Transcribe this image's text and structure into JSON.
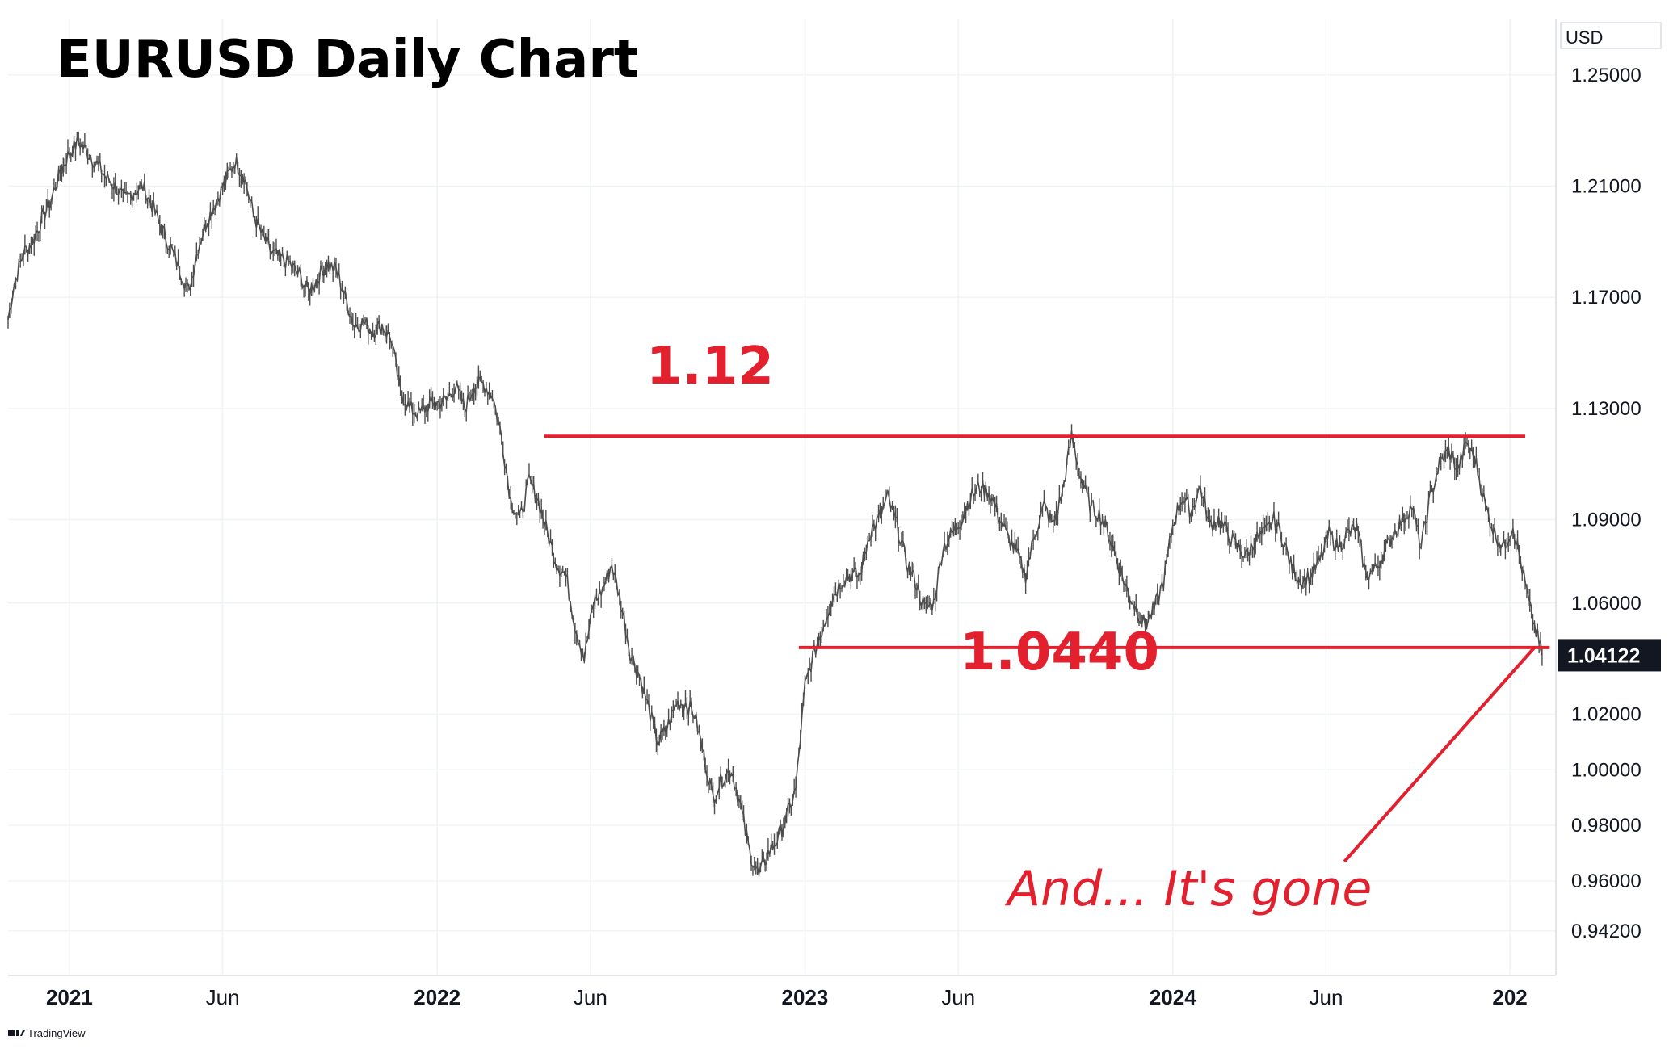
{
  "chart_data": {
    "type": "line",
    "title": "EURUSD Daily Chart",
    "xlabel": "",
    "ylabel": "",
    "currency_label": "USD",
    "x_ticks": [
      "2021",
      "Jun",
      "2022",
      "Jun",
      "2023",
      "Jun",
      "2024",
      "Jun",
      "202"
    ],
    "x_ticks_bold": [
      true,
      false,
      true,
      false,
      true,
      false,
      true,
      false,
      true
    ],
    "x_tick_times": [
      0,
      5,
      12,
      17,
      24,
      29,
      36,
      41,
      47
    ],
    "y_ticks": [
      "1.25000",
      "1.21000",
      "1.17000",
      "1.13000",
      "1.09000",
      "1.06000",
      "1.02000",
      "1.00000",
      "0.98000",
      "0.96000",
      "0.94200"
    ],
    "y_tick_values": [
      1.25,
      1.21,
      1.17,
      1.13,
      1.09,
      1.06,
      1.02,
      1.0,
      0.98,
      0.96,
      0.942
    ],
    "ylim": [
      0.926,
      1.27
    ],
    "xlim": [
      -2.0,
      48.5
    ],
    "grid": true,
    "last_price": 1.04122,
    "last_price_label": "1.04122",
    "series": [
      {
        "points": [
          [
            -2.0,
            1.162
          ],
          [
            -1.8,
            1.175
          ],
          [
            -1.5,
            1.186
          ],
          [
            -1.2,
            1.19
          ],
          [
            -0.9,
            1.198
          ],
          [
            -0.6,
            1.205
          ],
          [
            -0.3,
            1.215
          ],
          [
            0.0,
            1.222
          ],
          [
            0.3,
            1.226
          ],
          [
            0.6,
            1.222
          ],
          [
            0.9,
            1.218
          ],
          [
            1.2,
            1.213
          ],
          [
            1.5,
            1.21
          ],
          [
            1.8,
            1.205
          ],
          [
            2.1,
            1.208
          ],
          [
            2.4,
            1.21
          ],
          [
            2.7,
            1.203
          ],
          [
            3.0,
            1.195
          ],
          [
            3.3,
            1.188
          ],
          [
            3.6,
            1.18
          ],
          [
            3.9,
            1.172
          ],
          [
            4.2,
            1.188
          ],
          [
            4.5,
            1.198
          ],
          [
            4.8,
            1.205
          ],
          [
            5.1,
            1.212
          ],
          [
            5.4,
            1.219
          ],
          [
            5.7,
            1.214
          ],
          [
            6.0,
            1.2
          ],
          [
            6.3,
            1.192
          ],
          [
            6.6,
            1.186
          ],
          [
            6.9,
            1.184
          ],
          [
            7.2,
            1.182
          ],
          [
            7.5,
            1.178
          ],
          [
            7.8,
            1.172
          ],
          [
            8.1,
            1.177
          ],
          [
            8.4,
            1.182
          ],
          [
            8.7,
            1.18
          ],
          [
            9.0,
            1.17
          ],
          [
            9.3,
            1.16
          ],
          [
            9.6,
            1.161
          ],
          [
            9.9,
            1.158
          ],
          [
            10.2,
            1.16
          ],
          [
            10.5,
            1.155
          ],
          [
            10.8,
            1.136
          ],
          [
            11.1,
            1.13
          ],
          [
            11.4,
            1.128
          ],
          [
            11.7,
            1.131
          ],
          [
            12.0,
            1.132
          ],
          [
            12.3,
            1.133
          ],
          [
            12.6,
            1.138
          ],
          [
            12.9,
            1.13
          ],
          [
            13.2,
            1.138
          ],
          [
            13.5,
            1.139
          ],
          [
            13.8,
            1.135
          ],
          [
            14.1,
            1.12
          ],
          [
            14.4,
            1.097
          ],
          [
            14.7,
            1.09
          ],
          [
            15.0,
            1.104
          ],
          [
            15.3,
            1.097
          ],
          [
            15.6,
            1.085
          ],
          [
            15.9,
            1.074
          ],
          [
            16.2,
            1.07
          ],
          [
            16.5,
            1.052
          ],
          [
            16.8,
            1.04
          ],
          [
            17.1,
            1.06
          ],
          [
            17.4,
            1.065
          ],
          [
            17.7,
            1.074
          ],
          [
            18.0,
            1.06
          ],
          [
            18.3,
            1.042
          ],
          [
            18.6,
            1.034
          ],
          [
            18.9,
            1.022
          ],
          [
            19.2,
            1.01
          ],
          [
            19.5,
            1.015
          ],
          [
            19.8,
            1.024
          ],
          [
            20.1,
            1.024
          ],
          [
            20.4,
            1.02
          ],
          [
            20.7,
            1.005
          ],
          [
            21.0,
            0.99
          ],
          [
            21.3,
            0.997
          ],
          [
            21.6,
            1.0
          ],
          [
            21.9,
            0.987
          ],
          [
            22.2,
            0.97
          ],
          [
            22.5,
            0.962
          ],
          [
            22.8,
            0.97
          ],
          [
            23.1,
            0.975
          ],
          [
            23.4,
            0.983
          ],
          [
            23.7,
            0.993
          ],
          [
            24.0,
            1.03
          ],
          [
            24.3,
            1.042
          ],
          [
            24.6,
            1.052
          ],
          [
            24.9,
            1.062
          ],
          [
            25.2,
            1.068
          ],
          [
            25.5,
            1.07
          ],
          [
            25.8,
            1.07
          ],
          [
            26.1,
            1.085
          ],
          [
            26.4,
            1.09
          ],
          [
            26.7,
            1.098
          ],
          [
            27.0,
            1.088
          ],
          [
            27.3,
            1.075
          ],
          [
            27.6,
            1.068
          ],
          [
            27.9,
            1.058
          ],
          [
            28.2,
            1.06
          ],
          [
            28.5,
            1.08
          ],
          [
            28.8,
            1.085
          ],
          [
            29.1,
            1.09
          ],
          [
            29.4,
            1.098
          ],
          [
            29.7,
            1.102
          ],
          [
            30.0,
            1.1
          ],
          [
            30.3,
            1.092
          ],
          [
            30.6,
            1.084
          ],
          [
            30.9,
            1.078
          ],
          [
            31.2,
            1.07
          ],
          [
            31.5,
            1.085
          ],
          [
            31.8,
            1.095
          ],
          [
            32.1,
            1.088
          ],
          [
            32.4,
            1.1
          ],
          [
            32.7,
            1.12
          ],
          [
            33.0,
            1.105
          ],
          [
            33.3,
            1.095
          ],
          [
            33.6,
            1.092
          ],
          [
            33.9,
            1.085
          ],
          [
            34.2,
            1.075
          ],
          [
            34.5,
            1.065
          ],
          [
            34.8,
            1.058
          ],
          [
            35.1,
            1.052
          ],
          [
            35.4,
            1.058
          ],
          [
            35.7,
            1.068
          ],
          [
            36.0,
            1.088
          ],
          [
            36.3,
            1.098
          ],
          [
            36.6,
            1.093
          ],
          [
            36.9,
            1.102
          ],
          [
            37.2,
            1.088
          ],
          [
            37.5,
            1.09
          ],
          [
            37.8,
            1.085
          ],
          [
            38.1,
            1.08
          ],
          [
            38.4,
            1.077
          ],
          [
            38.7,
            1.083
          ],
          [
            39.0,
            1.085
          ],
          [
            39.3,
            1.09
          ],
          [
            39.6,
            1.083
          ],
          [
            39.9,
            1.072
          ],
          [
            40.2,
            1.068
          ],
          [
            40.5,
            1.07
          ],
          [
            40.8,
            1.075
          ],
          [
            41.1,
            1.085
          ],
          [
            41.4,
            1.08
          ],
          [
            41.7,
            1.085
          ],
          [
            42.0,
            1.087
          ],
          [
            42.3,
            1.07
          ],
          [
            42.6,
            1.072
          ],
          [
            42.9,
            1.078
          ],
          [
            43.2,
            1.085
          ],
          [
            43.5,
            1.09
          ],
          [
            43.8,
            1.095
          ],
          [
            44.1,
            1.08
          ],
          [
            44.4,
            1.098
          ],
          [
            44.7,
            1.11
          ],
          [
            45.0,
            1.115
          ],
          [
            45.3,
            1.108
          ],
          [
            45.6,
            1.118
          ],
          [
            45.9,
            1.11
          ],
          [
            46.2,
            1.095
          ],
          [
            46.5,
            1.085
          ],
          [
            46.8,
            1.08
          ],
          [
            47.1,
            1.088
          ],
          [
            47.4,
            1.072
          ],
          [
            47.7,
            1.056
          ],
          [
            47.9,
            1.048
          ],
          [
            48.05,
            1.04122
          ]
        ]
      }
    ],
    "annotations": {
      "resistance_label": "1.12",
      "resistance_value": 1.12,
      "resistance_span": [
        15.5,
        47.5
      ],
      "support_label": "1.0440",
      "support_value": 1.044,
      "support_span": [
        23.8,
        48.3
      ],
      "note_label": "And... It's gone",
      "note_arrow_from": [
        41.6,
        0.967
      ],
      "note_arrow_to": [
        47.8,
        1.044
      ]
    },
    "colors": {
      "price_line": "#4d4d4d",
      "annotation": "#e3202e",
      "grid": "#f0f3f5",
      "price_tag_bg": "#131722",
      "price_tag_text": "#ffffff",
      "axis_text": "#131722"
    }
  },
  "footer": {
    "brand": "TradingView",
    "logo_icon": "tradingview-logo-icon"
  }
}
